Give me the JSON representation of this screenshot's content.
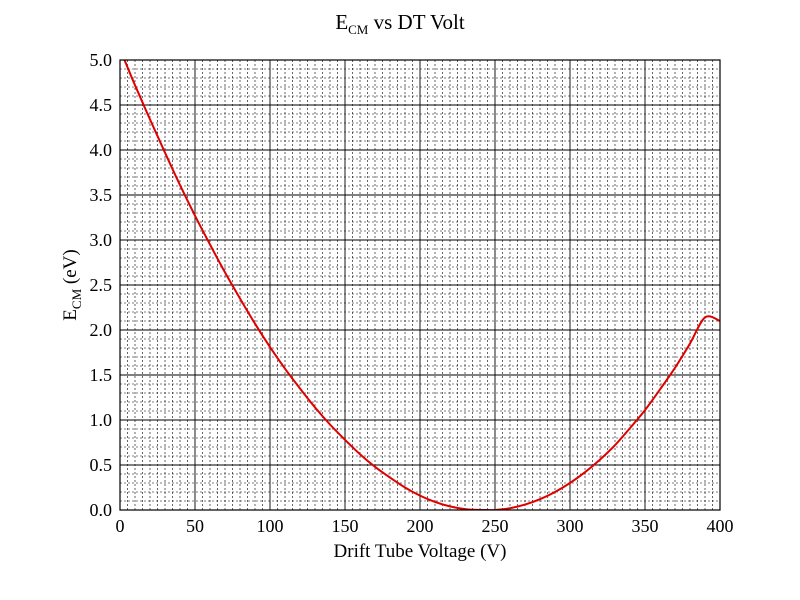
{
  "chart_data": {
    "type": "line",
    "title": {
      "main": "E",
      "subscript": "CM",
      "rest": " vs DT Volt"
    },
    "xlabel": "Drift Tube Voltage (V)",
    "ylabel": {
      "main": "E",
      "subscript": "CM",
      "rest": " (eV)"
    },
    "xlim": [
      0,
      400
    ],
    "ylim": [
      0,
      5.0
    ],
    "x_ticks": [
      "0",
      "50",
      "100",
      "150",
      "200",
      "250",
      "300",
      "350",
      "400"
    ],
    "y_ticks": [
      "0.0",
      "0.5",
      "1.0",
      "1.5",
      "2.0",
      "2.5",
      "3.0",
      "3.5",
      "4.0",
      "4.5",
      "5.0"
    ],
    "grid": true,
    "series": [
      {
        "color": "#e00000",
        "x": [
          3,
          10,
          20,
          30,
          40,
          50,
          60,
          70,
          80,
          90,
          100,
          110,
          120,
          130,
          140,
          150,
          160,
          170,
          180,
          190,
          200,
          210,
          220,
          230,
          240,
          245,
          250,
          260,
          270,
          280,
          290,
          300,
          310,
          320,
          330,
          340,
          350,
          360,
          370,
          380,
          390,
          400
        ],
        "y": [
          5.0,
          4.72,
          4.34,
          3.97,
          3.61,
          3.27,
          2.95,
          2.64,
          2.35,
          2.07,
          1.81,
          1.57,
          1.35,
          1.14,
          0.95,
          0.78,
          0.62,
          0.48,
          0.36,
          0.25,
          0.16,
          0.09,
          0.04,
          0.01,
          0.0,
          0.0,
          0.0,
          0.02,
          0.06,
          0.12,
          0.2,
          0.3,
          0.42,
          0.56,
          0.72,
          0.91,
          1.11,
          1.34,
          1.58,
          1.85,
          2.14,
          2.1
        ]
      }
    ]
  }
}
